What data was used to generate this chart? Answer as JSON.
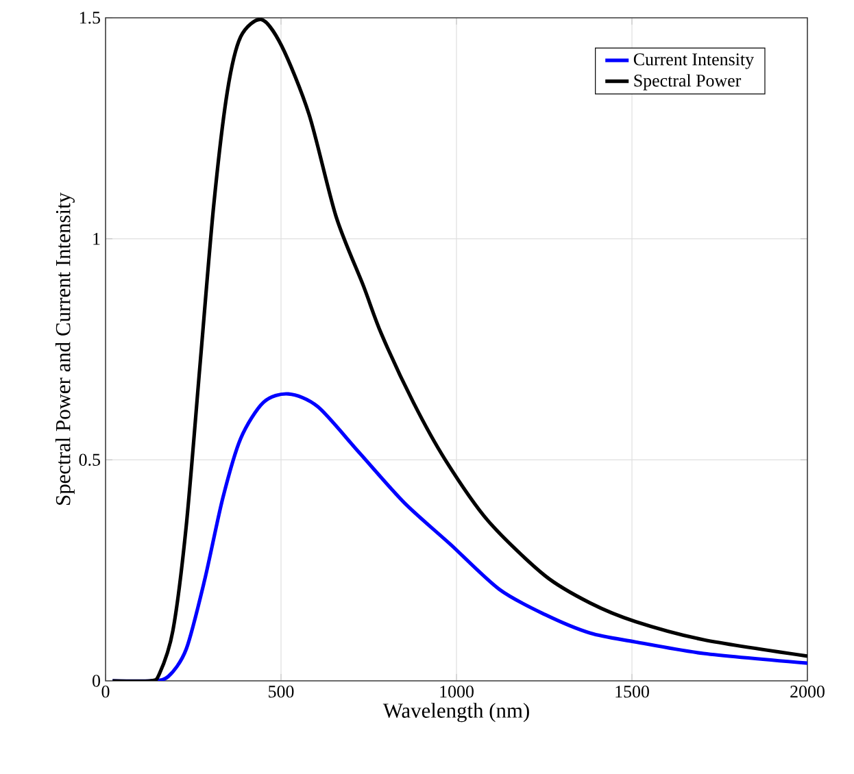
{
  "chart_data": {
    "type": "line",
    "xlabel": "Wavelength (nm)",
    "ylabel": "Spectral Power and Current Intensity",
    "xlim": [
      0,
      2000
    ],
    "ylim": [
      0,
      1.5
    ],
    "xticks": [
      0,
      500,
      1000,
      1500,
      2000
    ],
    "yticks": [
      0,
      0.5,
      1,
      1.5
    ],
    "grid": true,
    "legend": "top right",
    "marker": "none",
    "line_style": "solid",
    "series": [
      {
        "name": "Current Intensity",
        "color": "#0000ff",
        "x": [
          20,
          130,
          179,
          230,
          282,
          334,
          385,
          450,
          521,
          605,
          722,
          851,
          981,
          1122,
          1252,
          1381,
          1510,
          1704,
          2000
        ],
        "values": [
          0,
          0,
          0.01,
          0.072,
          0.227,
          0.413,
          0.548,
          0.63,
          0.649,
          0.62,
          0.517,
          0.403,
          0.31,
          0.207,
          0.15,
          0.108,
          0.088,
          0.062,
          0.04
        ]
      },
      {
        "name": "Spectral Power",
        "color": "#000000",
        "x": [
          20,
          127,
          153,
          192,
          230,
          269,
          308,
          347,
          385,
          444,
          502,
          580,
          657,
          735,
          786,
          877,
          968,
          1090,
          1252,
          1381,
          1510,
          1704,
          2000
        ],
        "values": [
          0,
          0,
          0.015,
          0.114,
          0.351,
          0.713,
          1.074,
          1.333,
          1.457,
          1.496,
          1.436,
          1.281,
          1.05,
          0.893,
          0.785,
          0.63,
          0.5,
          0.362,
          0.238,
          0.176,
          0.134,
          0.093,
          0.056
        ]
      }
    ]
  }
}
